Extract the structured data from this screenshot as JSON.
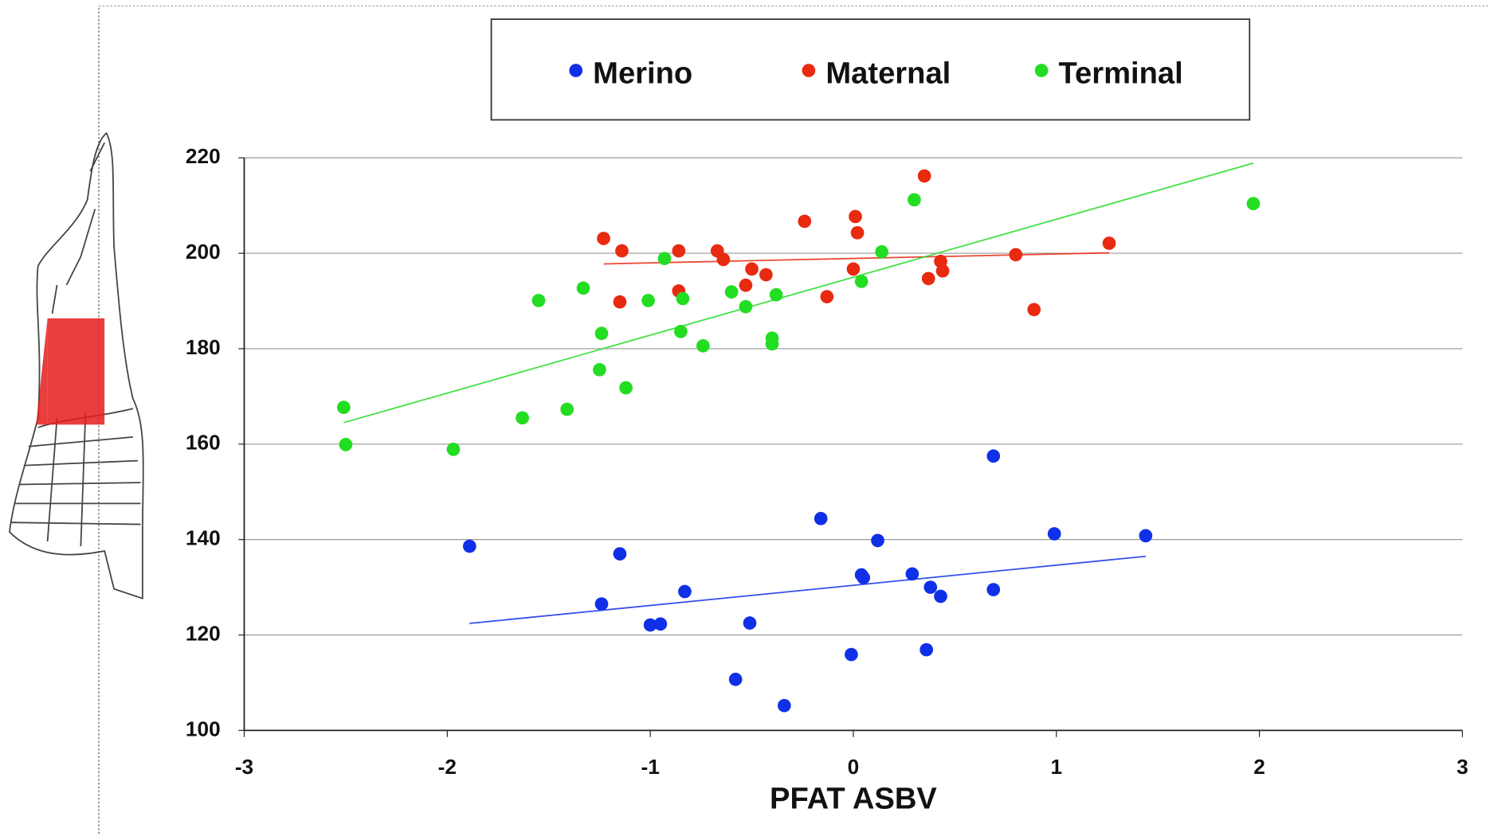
{
  "chart_data": {
    "type": "scatter",
    "x_label": "PFAT ASBV",
    "xlim": [
      -3,
      3
    ],
    "xticks": [
      -3,
      -2,
      -1,
      0,
      1,
      2,
      3
    ],
    "ylim": [
      100,
      220
    ],
    "yticks": [
      100,
      120,
      140,
      160,
      180,
      200,
      220
    ],
    "grid": true,
    "trendlines": true,
    "legend": "top",
    "series": [
      {
        "name": "Merino",
        "color": "#1030e8",
        "x": [
          -1.89,
          -1.15,
          -1.24,
          -0.83,
          -1.0,
          -0.95,
          -0.51,
          -0.58,
          -0.34,
          -0.16,
          -0.01,
          0.04,
          0.05,
          0.12,
          0.29,
          0.36,
          0.38,
          0.43,
          0.69,
          0.69,
          0.99,
          1.44
        ],
        "values": [
          138.6,
          137.0,
          126.5,
          129.1,
          122.1,
          122.3,
          122.5,
          110.7,
          105.2,
          144.4,
          115.9,
          132.6,
          132.0,
          139.8,
          132.8,
          116.9,
          130.0,
          128.1,
          157.5,
          129.5,
          141.2,
          140.8
        ]
      },
      {
        "name": "Maternal",
        "color": "#e82a10",
        "x": [
          -1.23,
          -1.14,
          -1.15,
          -0.86,
          -0.86,
          -0.67,
          -0.64,
          -0.53,
          -0.5,
          -0.43,
          -0.24,
          -0.13,
          0.01,
          0.02,
          0.0,
          0.35,
          0.37,
          0.43,
          0.44,
          0.8,
          0.89,
          1.26
        ],
        "values": [
          203.1,
          200.5,
          189.8,
          200.5,
          192.1,
          200.5,
          198.7,
          193.3,
          196.7,
          195.5,
          206.7,
          190.9,
          207.7,
          204.3,
          196.7,
          216.2,
          194.7,
          198.3,
          196.3,
          199.7,
          188.2,
          202.1
        ]
      },
      {
        "name": "Terminal",
        "color": "#22dd22",
        "x": [
          -2.51,
          -2.5,
          -1.97,
          -1.63,
          -1.55,
          -1.41,
          -1.33,
          -1.25,
          -1.24,
          -1.12,
          -1.01,
          -0.93,
          -0.85,
          -0.84,
          -0.74,
          -0.6,
          -0.53,
          -0.4,
          -0.4,
          -0.38,
          0.04,
          0.14,
          0.3,
          1.97
        ],
        "values": [
          167.7,
          159.9,
          158.9,
          165.5,
          190.1,
          167.3,
          192.7,
          175.6,
          183.2,
          171.8,
          190.1,
          198.9,
          183.6,
          190.5,
          180.6,
          191.9,
          188.8,
          182.2,
          181.0,
          191.3,
          194.1,
          200.3,
          211.2,
          210.4
        ]
      }
    ]
  }
}
